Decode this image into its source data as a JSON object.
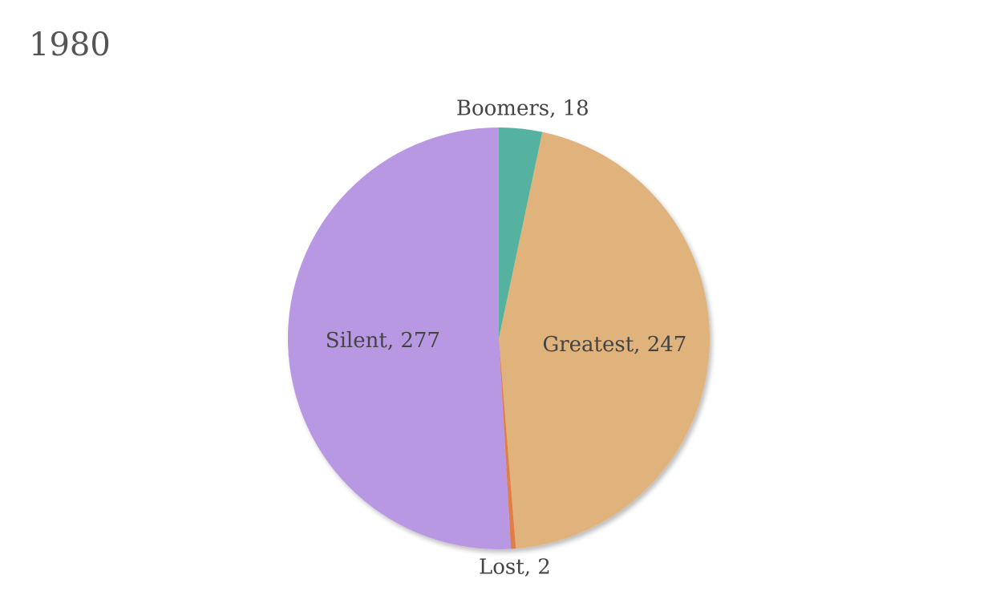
{
  "chart_data": {
    "type": "pie",
    "title": "1980",
    "slices": [
      {
        "label": "Boomers",
        "value": 18,
        "color": "#55b2a0",
        "display": "Boomers, 18"
      },
      {
        "label": "Greatest",
        "value": 247,
        "color": "#e0b27c",
        "display": "Greatest, 247"
      },
      {
        "label": "Lost",
        "value": 2,
        "color": "#e07f45",
        "display": "Lost, 2"
      },
      {
        "label": "Silent",
        "value": 277,
        "color": "#b898e3",
        "display": "Silent, 277"
      }
    ],
    "start_angle_deg": 0,
    "direction": "clockwise",
    "legend": "none",
    "label_placement": {
      "Boomers": "outside",
      "Greatest": "inside",
      "Lost": "outside",
      "Silent": "inside"
    }
  }
}
